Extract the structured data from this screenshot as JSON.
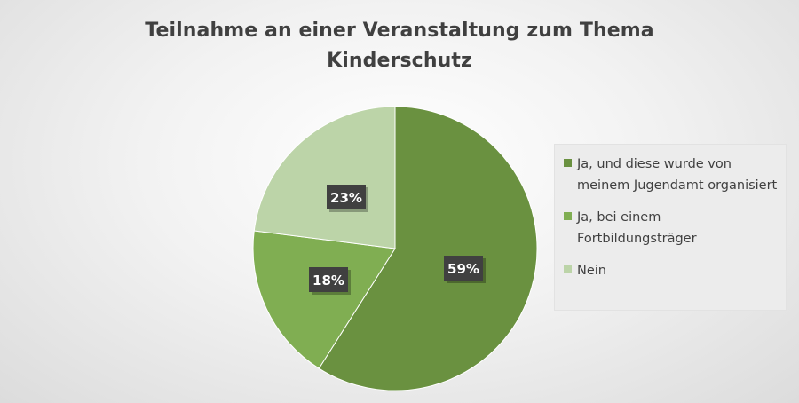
{
  "chart_data": {
    "type": "pie",
    "title_lines": [
      "Teilnahme an einer Veranstaltung zum Thema",
      "Kinderschutz"
    ],
    "slices": [
      {
        "label": "Ja, und diese wurde von meinem Jugendamt organisiert",
        "legend_lines": "Ja, und diese wurde von\nmeinem Jugendamt organisiert",
        "value": 59,
        "data_label": "59%",
        "color": "#6a9140"
      },
      {
        "label": "Ja, bei einem Fortbildungsträger",
        "legend_lines": "Ja, bei einem\nFortbildungsträger",
        "value": 18,
        "data_label": "18%",
        "color": "#80ae52"
      },
      {
        "label": "Nein",
        "legend_lines": "Nein",
        "value": 23,
        "data_label": "23%",
        "color": "#bcd4a8"
      }
    ],
    "start_angle_deg": 0,
    "direction": "clockwise",
    "legend_position": "right",
    "data_label_style": {
      "background": "#404040",
      "text_color": "#ffffff"
    }
  }
}
